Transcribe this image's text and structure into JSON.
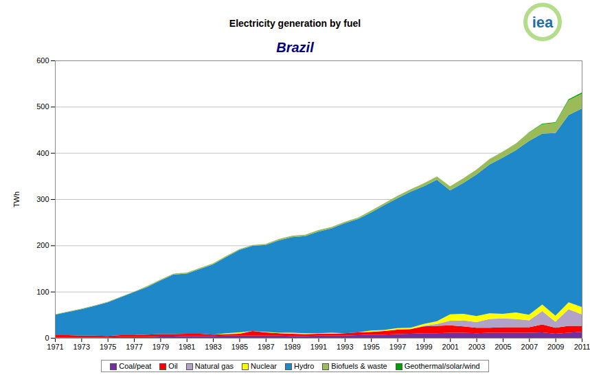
{
  "chart_data": {
    "type": "area",
    "title": "Electricity generation by fuel",
    "subtitle": "Brazil",
    "annotations": [
      "iea"
    ],
    "y_label": "TWh",
    "stacked": true,
    "grid": true,
    "legend": "bottom",
    "xlim": [
      1971,
      2011
    ],
    "xticks": [
      1971,
      1973,
      1975,
      1977,
      1979,
      1981,
      1983,
      1985,
      1987,
      1989,
      1991,
      1993,
      1995,
      1997,
      1999,
      2001,
      2003,
      2005,
      2007,
      2009,
      2011
    ],
    "ylim": [
      0,
      600
    ],
    "yticks": [
      0,
      100,
      200,
      300,
      400,
      500,
      600
    ],
    "x": [
      1971,
      1972,
      1973,
      1974,
      1975,
      1976,
      1977,
      1978,
      1979,
      1980,
      1981,
      1982,
      1983,
      1984,
      1985,
      1986,
      1987,
      1988,
      1989,
      1990,
      1991,
      1992,
      1993,
      1994,
      1995,
      1996,
      1997,
      1998,
      1999,
      2000,
      2001,
      2002,
      2003,
      2004,
      2005,
      2006,
      2007,
      2008,
      2009,
      2010,
      2011
    ],
    "series": [
      {
        "name": "Coal/peat",
        "color": "#7030a0",
        "values": [
          1,
          1,
          1,
          1,
          1,
          2,
          2,
          2,
          3,
          3,
          4,
          4,
          4,
          5,
          5,
          5,
          5,
          5,
          4,
          4,
          5,
          5,
          5,
          6,
          7,
          7,
          8,
          9,
          10,
          10,
          11,
          11,
          10,
          11,
          11,
          11,
          11,
          12,
          9,
          11,
          13
        ]
      },
      {
        "name": "Oil",
        "color": "#ff0000",
        "values": [
          5,
          5,
          4,
          4,
          3,
          4,
          4,
          5,
          5,
          5,
          5,
          5,
          3,
          3,
          4,
          10,
          7,
          5,
          5,
          4,
          4,
          4,
          5,
          6,
          6,
          8,
          10,
          10,
          15,
          16,
          16,
          14,
          12,
          11,
          12,
          12,
          12,
          17,
          13,
          15,
          13
        ]
      },
      {
        "name": "Natural gas",
        "color": "#b3a2c7",
        "values": [
          0,
          0,
          0,
          0,
          0,
          0,
          0,
          0,
          0,
          0,
          0,
          0,
          0,
          0,
          0,
          0,
          0,
          0,
          0,
          0,
          0,
          0,
          0,
          0,
          0,
          0,
          0,
          0,
          1,
          4,
          10,
          13,
          12,
          19,
          19,
          18,
          15,
          29,
          13,
          36,
          25
        ]
      },
      {
        "name": "Nuclear",
        "color": "#ffff00",
        "values": [
          0,
          0,
          0,
          0,
          0,
          0,
          0,
          0,
          0,
          0,
          0,
          0,
          0,
          2,
          3,
          0,
          1,
          1,
          2,
          2,
          1,
          2,
          0,
          0,
          3,
          2,
          3,
          3,
          4,
          6,
          14,
          14,
          13,
          12,
          10,
          14,
          12,
          14,
          13,
          15,
          16
        ]
      },
      {
        "name": "Hydro",
        "color": "#1f88c9",
        "values": [
          44,
          50,
          57,
          64,
          73,
          82,
          93,
          103,
          116,
          129,
          130,
          140,
          152,
          165,
          178,
          184,
          188,
          200,
          207,
          210,
          220,
          226,
          238,
          245,
          255,
          270,
          281,
          294,
          298,
          306,
          268,
          283,
          306,
          322,
          338,
          351,
          376,
          370,
          395,
          405,
          429
        ]
      },
      {
        "name": "Biofuels & waste",
        "color": "#9bbb59",
        "values": [
          1,
          1,
          1,
          1,
          1,
          1,
          1,
          2,
          2,
          2,
          2,
          2,
          2,
          2,
          2,
          2,
          2,
          3,
          3,
          3,
          3,
          3,
          3,
          3,
          4,
          4,
          5,
          5,
          6,
          7,
          9,
          10,
          11,
          12,
          13,
          14,
          18,
          20,
          22,
          32,
          32
        ]
      },
      {
        "name": "Geothermal/solar/wind",
        "color": "#00a000",
        "values": [
          0,
          0,
          0,
          0,
          0,
          0,
          0,
          0,
          0,
          0,
          0,
          0,
          0,
          0,
          0,
          0,
          0,
          0,
          0,
          0,
          0,
          0,
          0,
          0,
          0,
          0,
          0,
          0,
          0,
          0,
          0,
          0,
          0,
          0,
          0,
          0.2,
          0.7,
          1.2,
          1.2,
          2.2,
          2.7
        ]
      }
    ]
  }
}
